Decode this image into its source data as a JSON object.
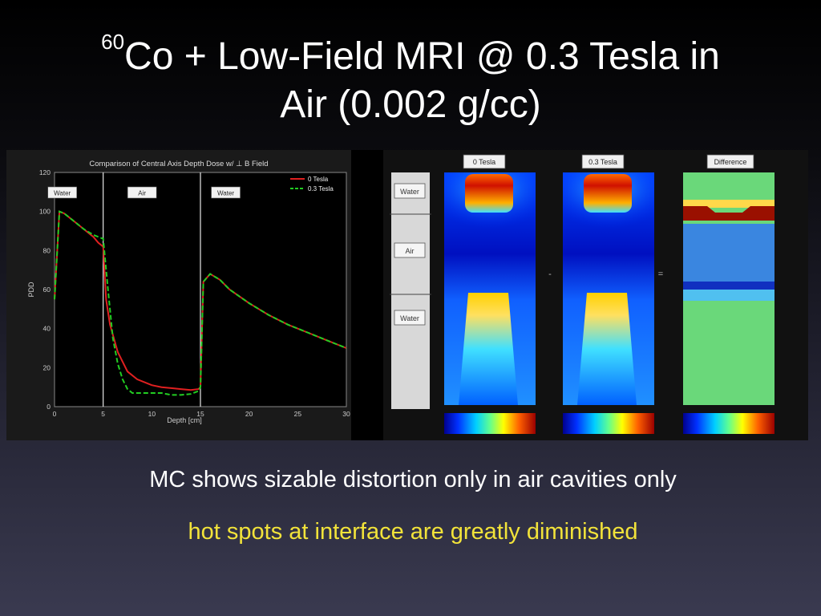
{
  "slide": {
    "title_superscript": "60",
    "title_line1": "Co + Low-Field MRI @ 0.3 Tesla in",
    "title_line2": "Air (0.002 g/cc)",
    "caption1": "MC shows sizable distortion only in air cavities only",
    "caption2": "hot spots at interface are greatly diminished",
    "caption2_color": "#f2e33a"
  },
  "chart_data": [
    {
      "type": "line",
      "title": "Comparison of Central Axis Depth Dose w/ ⊥ B Field",
      "xlabel": "Depth [cm]",
      "ylabel": "PDD",
      "xlim": [
        0,
        30
      ],
      "ylim": [
        0,
        120
      ],
      "xticks": [
        "0",
        "5",
        "10",
        "15",
        "20",
        "25",
        "30"
      ],
      "yticks": [
        "0",
        "20",
        "40",
        "60",
        "80",
        "100",
        "120"
      ],
      "region_labels": [
        "Water",
        "Air",
        "Water"
      ],
      "interfaces": [
        5,
        15
      ],
      "legend_position": "top-right",
      "series": [
        {
          "name": "0 Tesla",
          "color": "#e02020",
          "style": "solid",
          "x": [
            0,
            0.5,
            1,
            2,
            3,
            4,
            4.5,
            5,
            5.3,
            5.7,
            6.5,
            7.5,
            8.5,
            10,
            11,
            12,
            13,
            14,
            14.8,
            15,
            15.3,
            16,
            17,
            18,
            20,
            22,
            24,
            26,
            28,
            30
          ],
          "y": [
            55,
            100,
            99,
            95,
            91,
            87,
            84,
            82,
            55,
            42,
            28,
            18,
            14,
            11,
            10,
            9.5,
            9,
            8.5,
            9,
            10,
            64,
            68,
            65,
            60,
            53,
            47,
            42,
            38,
            34,
            30
          ]
        },
        {
          "name": "0.3 Tesla",
          "color": "#22cc22",
          "style": "dashed",
          "x": [
            0,
            0.5,
            1,
            2,
            3,
            4,
            5,
            5.5,
            6,
            6.5,
            7,
            7.5,
            8,
            9,
            10,
            11,
            12,
            13,
            14,
            14.8,
            15,
            15.3,
            16,
            17,
            18,
            20,
            22,
            24,
            26,
            28,
            30
          ],
          "y": [
            55,
            100,
            99,
            95,
            91,
            88,
            86,
            60,
            35,
            22,
            14,
            9,
            7,
            7,
            7,
            7,
            6,
            6,
            6.5,
            8,
            10,
            64,
            68,
            65,
            60,
            53,
            47,
            42,
            38,
            34,
            30
          ]
        }
      ]
    },
    {
      "type": "heatmap",
      "panels": [
        "0 Tesla",
        "0.3 Tesla",
        "Difference"
      ],
      "operators": [
        "-",
        "="
      ],
      "phantom_labels": [
        "Water",
        "Air",
        "Water"
      ]
    }
  ]
}
